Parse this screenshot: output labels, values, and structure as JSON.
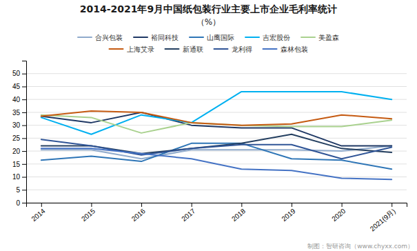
{
  "chart_data": {
    "type": "line",
    "title": "2014-2021年9月中国纸包装行业主要上市企业毛利率统计",
    "subtitle": "（%）",
    "annotations": [
      "制图：智研咨询（www.chyxx.com）"
    ],
    "categories": [
      "2014",
      "2015",
      "2016",
      "2017",
      "2018",
      "2019",
      "2020",
      "2021(9月)"
    ],
    "ylim": [
      0,
      55
    ],
    "yticks": [
      0,
      5,
      10,
      15,
      20,
      25,
      30,
      35,
      40,
      45,
      50
    ],
    "grid": true,
    "legend": "top",
    "series": [
      {
        "name": "合兴包装",
        "color": "#8faacc",
        "values": [
          20.5,
          20.5,
          17.0,
          20.5,
          20.5,
          20.5,
          20.0,
          22.0
        ]
      },
      {
        "name": "裕同科技",
        "color": "#1f3864",
        "values": [
          33.5,
          31.0,
          35.0,
          30.0,
          29.0,
          29.0,
          22.0,
          22.0
        ]
      },
      {
        "name": "山鹰国际",
        "color": "#2e75b6",
        "values": [
          16.5,
          18.0,
          16.0,
          23.0,
          23.0,
          17.0,
          16.5,
          13.0
        ]
      },
      {
        "name": "吉宏股份",
        "color": "#00b0f0",
        "values": [
          33.0,
          26.5,
          34.0,
          31.0,
          43.0,
          43.0,
          43.0,
          40.0
        ]
      },
      {
        "name": "美盈森",
        "color": "#a9d18e",
        "values": [
          34.0,
          33.0,
          27.0,
          31.0,
          30.0,
          29.5,
          29.5,
          32.0
        ]
      },
      {
        "name": "上海艾录",
        "color": "#c55a11",
        "values": [
          33.5,
          35.5,
          35.0,
          31.0,
          30.0,
          30.5,
          34.0,
          32.5
        ]
      },
      {
        "name": "新通联",
        "color": "#243f60",
        "values": [
          22.0,
          22.0,
          19.0,
          21.0,
          23.0,
          26.5,
          21.0,
          19.5
        ]
      },
      {
        "name": "龙利得",
        "color": "#2f5496",
        "values": [
          24.5,
          22.0,
          18.5,
          21.0,
          22.5,
          22.5,
          17.0,
          21.5
        ]
      },
      {
        "name": "森林包装",
        "color": "#4472c4",
        "values": [
          21.0,
          21.0,
          19.0,
          17.0,
          13.0,
          12.5,
          9.5,
          9.0
        ]
      }
    ]
  }
}
